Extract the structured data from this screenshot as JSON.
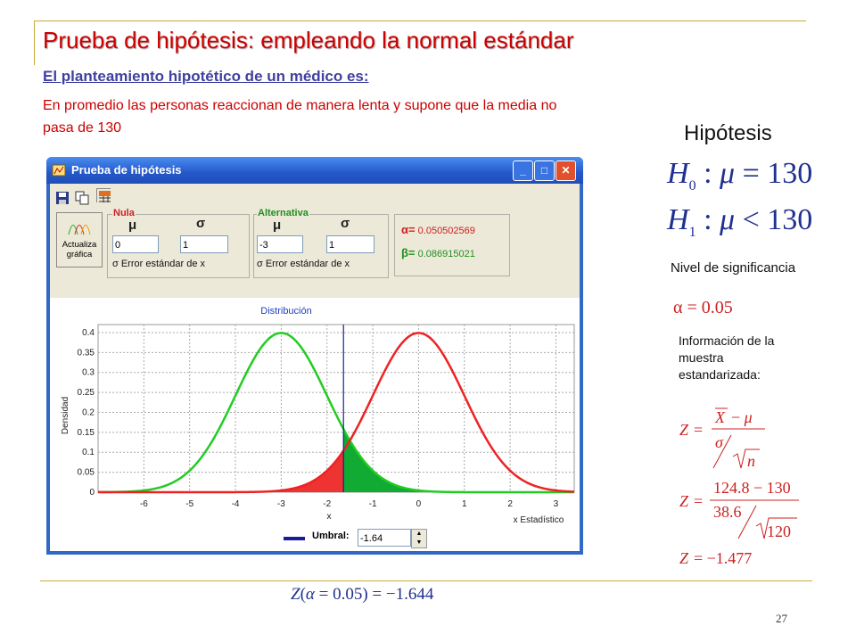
{
  "slide": {
    "title": "Prueba de hipótesis: empleando la normal estándar",
    "subtitle": "El planteamiento hipotético de un médico es:",
    "text_line1": "En promedio las personas reaccionan de manera lenta y supone que la media no",
    "text_line2": "pasa de 130",
    "hypothesis_heading": "Hipótesis",
    "h0": "H₀ : μ = 130",
    "h1": "H₁ : μ < 130",
    "significance_label": "Nivel de significancia",
    "alpha_formula": "α = 0.05",
    "sample_info": "Información de la muestra estandarizada:",
    "z_general": "Z = (X̄ − μ) / (σ/√n)",
    "z_values": "Z = (124.8 − 130) / (38.6/√120)",
    "z_result": "Z = −1.477",
    "z_critical": "Z(α = 0.05) = −1.644",
    "page_number": "27"
  },
  "window": {
    "title": "Prueba de hipótesis",
    "update_button": "Actualiza gráfica",
    "null_group": "Nula",
    "alt_group": "Alternativa",
    "mu_symbol": "μ",
    "sigma_symbol": "σ",
    "null_mu": "0",
    "null_sigma": "1",
    "alt_mu": "-3",
    "alt_sigma": "1",
    "std_error_label": "σ Error estándar de x",
    "alpha_label": "α=",
    "alpha_value": "0.050502569",
    "beta_label": "β=",
    "beta_value": "0.086915021",
    "plot_title": "Distribución",
    "ylabel": "Densidad",
    "xlabel": "x",
    "x_stat_label": "x Estadístico",
    "threshold_label": "Umbral:",
    "threshold_value": "-1.64"
  },
  "colors": {
    "null_curve": "#ee2222",
    "alt_curve": "#22cc22",
    "threshold": "#1a1aa0",
    "accent": "#cc0000"
  },
  "chart_data": {
    "type": "line",
    "title": "Distribución",
    "xlabel": "x",
    "ylabel": "Densidad",
    "xlim": [
      -7,
      3.4
    ],
    "ylim": [
      0,
      0.42
    ],
    "x_ticks": [
      -6,
      -5,
      -4,
      -3,
      -2,
      -1,
      0,
      1,
      2,
      3
    ],
    "y_ticks": [
      0,
      0.05,
      0.1,
      0.15,
      0.2,
      0.25,
      0.3,
      0.35,
      0.4
    ],
    "series": [
      {
        "mean": -3,
        "sd": 1,
        "color": "#22cc22"
      },
      {
        "mean": 0,
        "sd": 1,
        "color": "#ee2222"
      }
    ],
    "threshold": -1.64,
    "grid": true
  }
}
